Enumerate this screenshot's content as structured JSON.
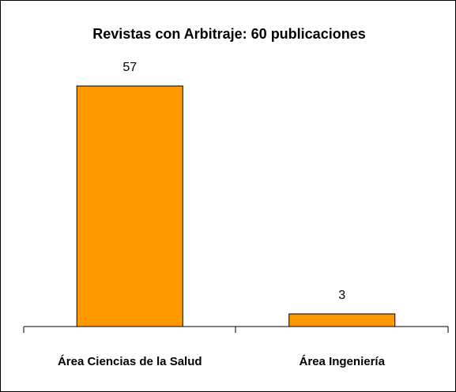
{
  "chart_data": {
    "type": "bar",
    "title": "Revistas con Arbitraje: 60 publicaciones",
    "categories": [
      "Área Ciencias de la Salud",
      "Área Ingeniería"
    ],
    "values": [
      57,
      3
    ],
    "color": "#ff9900"
  }
}
